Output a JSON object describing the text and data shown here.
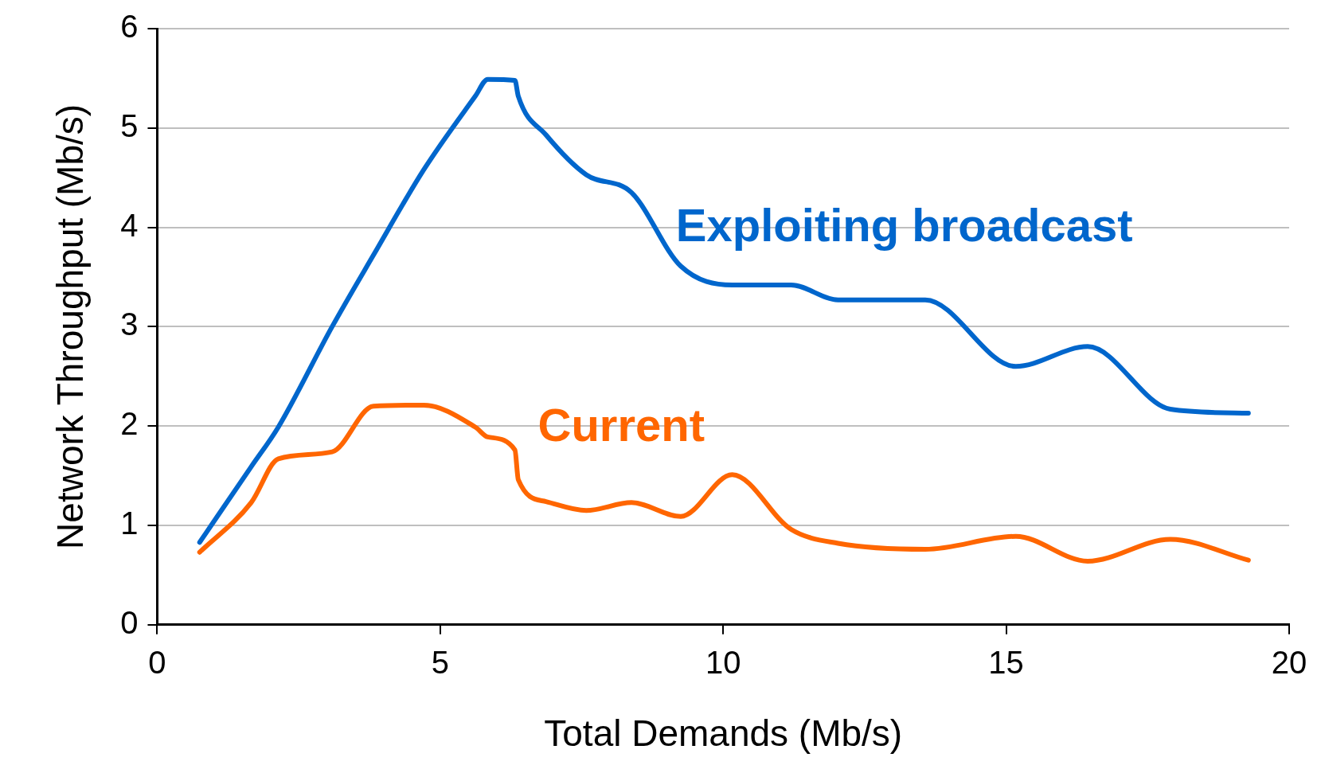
{
  "chart_data": {
    "type": "line",
    "xlabel": "Total Demands (Mb/s)",
    "ylabel": "Network Throughput (Mb/s)",
    "x": [
      0.75,
      1.66,
      2.14,
      3.09,
      3.82,
      4.71,
      5.62,
      5.84,
      6.32,
      6.38,
      6.87,
      7.58,
      8.38,
      9.25,
      10.16,
      11.2,
      12.03,
      13.57,
      15.17,
      16.44,
      17.9,
      19.28
    ],
    "series": [
      {
        "name": "Exploiting broadcast",
        "color": "#0066cc",
        "values": [
          0.83,
          1.59,
          1.99,
          3.0,
          3.72,
          4.58,
          5.32,
          5.49,
          5.48,
          5.32,
          4.93,
          4.53,
          4.35,
          3.61,
          3.42,
          3.42,
          3.27,
          3.27,
          2.6,
          2.8,
          2.17,
          2.13
        ]
      },
      {
        "name": "Current",
        "color": "#ff6600",
        "values": [
          0.73,
          1.23,
          1.67,
          1.74,
          2.2,
          2.21,
          1.99,
          1.89,
          1.76,
          1.46,
          1.24,
          1.15,
          1.23,
          1.09,
          1.51,
          0.96,
          0.82,
          0.76,
          0.89,
          0.64,
          0.86,
          0.65
        ]
      }
    ],
    "xlim": [
      0,
      20
    ],
    "xticks": [
      0,
      5,
      10,
      15,
      20
    ],
    "ylim": [
      0,
      6
    ],
    "yticks": [
      0,
      1,
      2,
      3,
      4,
      5,
      6
    ],
    "grid": "y",
    "legend": false,
    "marker": "none",
    "line_style": "solid"
  }
}
